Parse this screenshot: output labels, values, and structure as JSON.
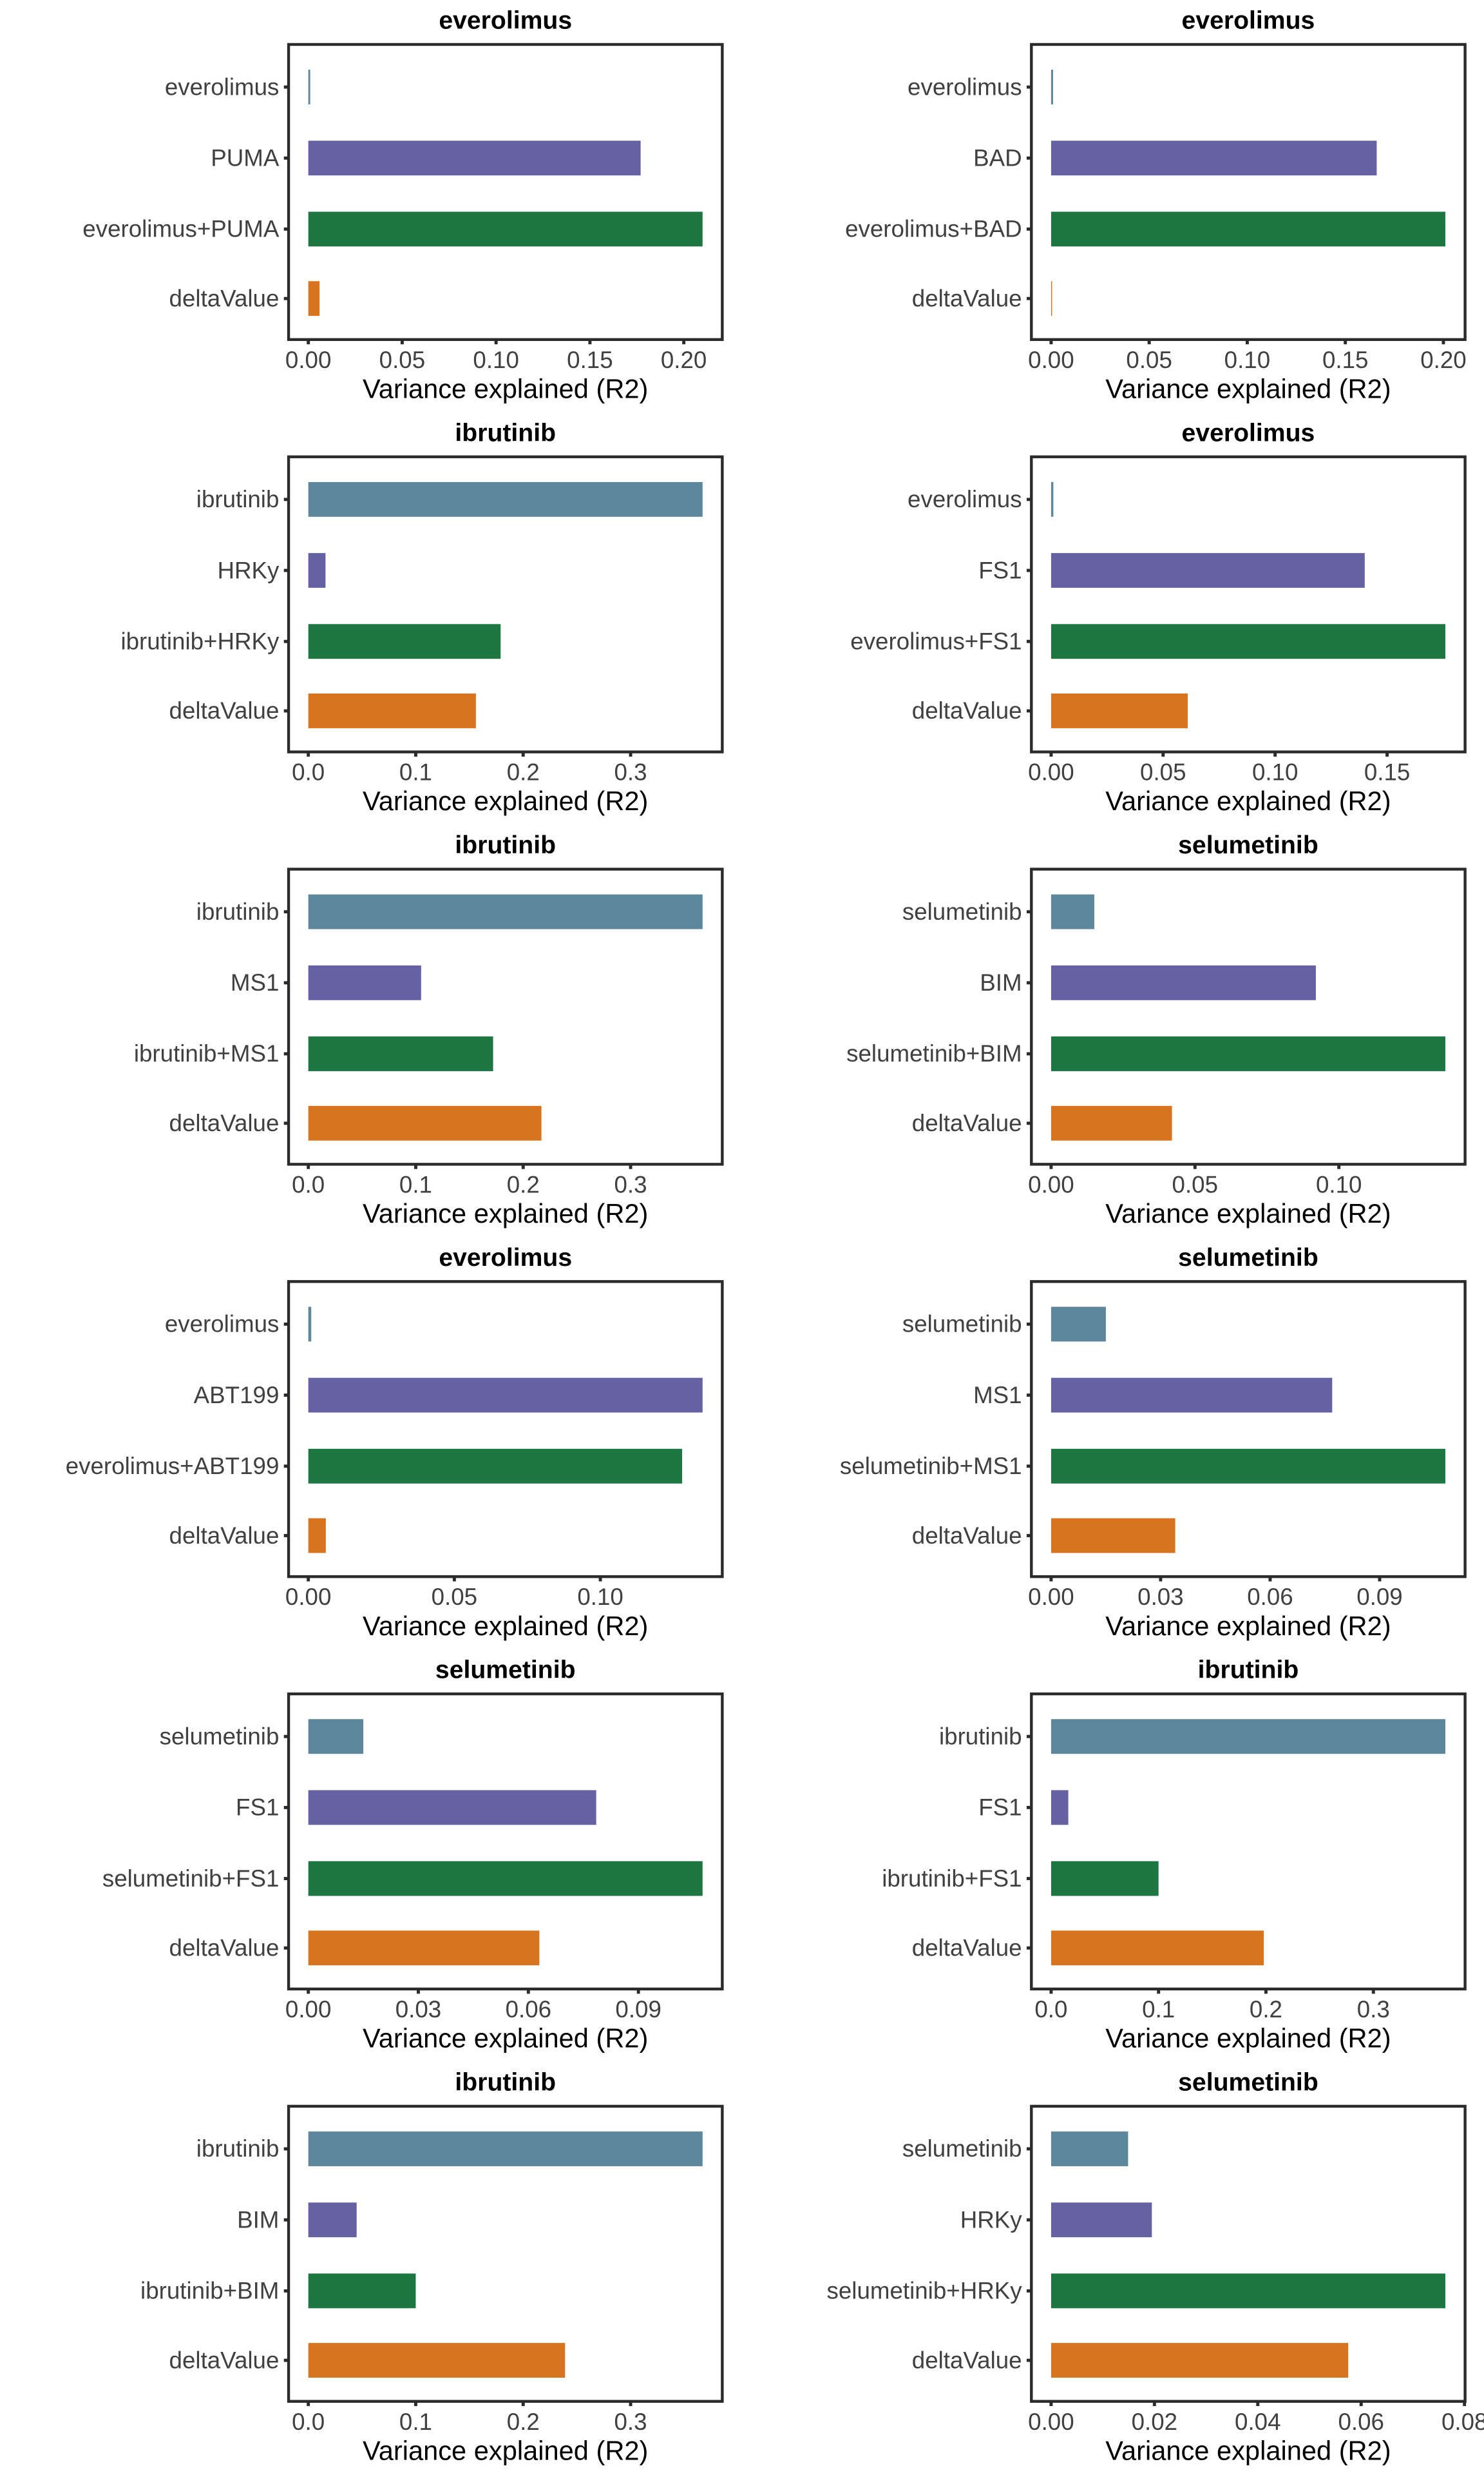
{
  "colors": {
    "drug": "#5d879d",
    "gene": "#6661a3",
    "combo": "#1e7641",
    "delta": "#d8741f"
  },
  "chart_data": [
    {
      "type": "bar",
      "orientation": "horizontal",
      "title": "everolimus",
      "xlabel": "Variance explained (R2)",
      "categories": [
        "everolimus",
        "PUMA",
        "everolimus+PUMA",
        "deltaValue"
      ],
      "values": [
        0.001,
        0.177,
        0.21,
        0.006
      ],
      "xticks": [
        0,
        0.05,
        0.1,
        0.15,
        0.2
      ],
      "xtick_labels": [
        "0.00",
        "0.05",
        "0.10",
        "0.15",
        "0.20"
      ]
    },
    {
      "type": "bar",
      "orientation": "horizontal",
      "title": "everolimus",
      "xlabel": "Variance explained (R2)",
      "categories": [
        "everolimus",
        "BAD",
        "everolimus+BAD",
        "deltaValue"
      ],
      "values": [
        0.001,
        0.166,
        0.201,
        0.0005
      ],
      "xticks": [
        0,
        0.05,
        0.1,
        0.15,
        0.2
      ],
      "xtick_labels": [
        "0.00",
        "0.05",
        "0.10",
        "0.15",
        "0.20"
      ]
    },
    {
      "type": "bar",
      "orientation": "horizontal",
      "title": "ibrutinib",
      "xlabel": "Variance explained (R2)",
      "categories": [
        "ibrutinib",
        "HRKy",
        "ibrutinib+HRKy",
        "deltaValue"
      ],
      "values": [
        0.367,
        0.016,
        0.179,
        0.156
      ],
      "xticks": [
        0,
        0.1,
        0.2,
        0.3
      ],
      "xtick_labels": [
        "0.0",
        "0.1",
        "0.2",
        "0.3"
      ]
    },
    {
      "type": "bar",
      "orientation": "horizontal",
      "title": "everolimus",
      "xlabel": "Variance explained (R2)",
      "categories": [
        "everolimus",
        "FS1",
        "everolimus+FS1",
        "deltaValue"
      ],
      "values": [
        0.001,
        0.14,
        0.176,
        0.061
      ],
      "xticks": [
        0,
        0.05,
        0.1,
        0.15
      ],
      "xtick_labels": [
        "0.00",
        "0.05",
        "0.10",
        "0.15"
      ]
    },
    {
      "type": "bar",
      "orientation": "horizontal",
      "title": "ibrutinib",
      "xlabel": "Variance explained (R2)",
      "categories": [
        "ibrutinib",
        "MS1",
        "ibrutinib+MS1",
        "deltaValue"
      ],
      "values": [
        0.367,
        0.105,
        0.172,
        0.217
      ],
      "xticks": [
        0,
        0.1,
        0.2,
        0.3
      ],
      "xtick_labels": [
        "0.0",
        "0.1",
        "0.2",
        "0.3"
      ]
    },
    {
      "type": "bar",
      "orientation": "horizontal",
      "title": "selumetinib",
      "xlabel": "Variance explained (R2)",
      "categories": [
        "selumetinib",
        "BIM",
        "selumetinib+BIM",
        "deltaValue"
      ],
      "values": [
        0.015,
        0.092,
        0.137,
        0.042
      ],
      "xticks": [
        0,
        0.05,
        0.1
      ],
      "xtick_labels": [
        "0.00",
        "0.05",
        "0.10"
      ]
    },
    {
      "type": "bar",
      "orientation": "horizontal",
      "title": "everolimus",
      "xlabel": "Variance explained (R2)",
      "categories": [
        "everolimus",
        "ABT199",
        "everolimus+ABT199",
        "deltaValue"
      ],
      "values": [
        0.001,
        0.135,
        0.128,
        0.006
      ],
      "xticks": [
        0,
        0.05,
        0.1
      ],
      "xtick_labels": [
        "0.00",
        "0.05",
        "0.10"
      ]
    },
    {
      "type": "bar",
      "orientation": "horizontal",
      "title": "selumetinib",
      "xlabel": "Variance explained (R2)",
      "categories": [
        "selumetinib",
        "MS1",
        "selumetinib+MS1",
        "deltaValue"
      ],
      "values": [
        0.015,
        0.077,
        0.108,
        0.034
      ],
      "xticks": [
        0,
        0.03,
        0.06,
        0.09
      ],
      "xtick_labels": [
        "0.00",
        "0.03",
        "0.06",
        "0.09"
      ]
    },
    {
      "type": "bar",
      "orientation": "horizontal",
      "title": "selumetinib",
      "xlabel": "Variance explained (R2)",
      "categories": [
        "selumetinib",
        "FS1",
        "selumetinib+FS1",
        "deltaValue"
      ],
      "values": [
        0.015,
        0.0785,
        0.1075,
        0.063
      ],
      "xticks": [
        0,
        0.03,
        0.06,
        0.09
      ],
      "xtick_labels": [
        "0.00",
        "0.03",
        "0.06",
        "0.09"
      ]
    },
    {
      "type": "bar",
      "orientation": "horizontal",
      "title": "ibrutinib",
      "xlabel": "Variance explained (R2)",
      "categories": [
        "ibrutinib",
        "FS1",
        "ibrutinib+FS1",
        "deltaValue"
      ],
      "values": [
        0.367,
        0.016,
        0.1,
        0.198
      ],
      "xticks": [
        0,
        0.1,
        0.2,
        0.3
      ],
      "xtick_labels": [
        "0.0",
        "0.1",
        "0.2",
        "0.3"
      ]
    },
    {
      "type": "bar",
      "orientation": "horizontal",
      "title": "ibrutinib",
      "xlabel": "Variance explained (R2)",
      "categories": [
        "ibrutinib",
        "BIM",
        "ibrutinib+BIM",
        "deltaValue"
      ],
      "values": [
        0.367,
        0.045,
        0.1,
        0.239
      ],
      "xticks": [
        0,
        0.1,
        0.2,
        0.3
      ],
      "xtick_labels": [
        "0.0",
        "0.1",
        "0.2",
        "0.3"
      ]
    },
    {
      "type": "bar",
      "orientation": "horizontal",
      "title": "selumetinib",
      "xlabel": "Variance explained (R2)",
      "categories": [
        "selumetinib",
        "HRKy",
        "selumetinib+HRKy",
        "deltaValue"
      ],
      "values": [
        0.0149,
        0.0195,
        0.0763,
        0.0575
      ],
      "xticks": [
        0,
        0.02,
        0.04,
        0.06,
        0.08
      ],
      "xtick_labels": [
        "0.00",
        "0.02",
        "0.04",
        "0.06",
        "0.08"
      ]
    }
  ]
}
